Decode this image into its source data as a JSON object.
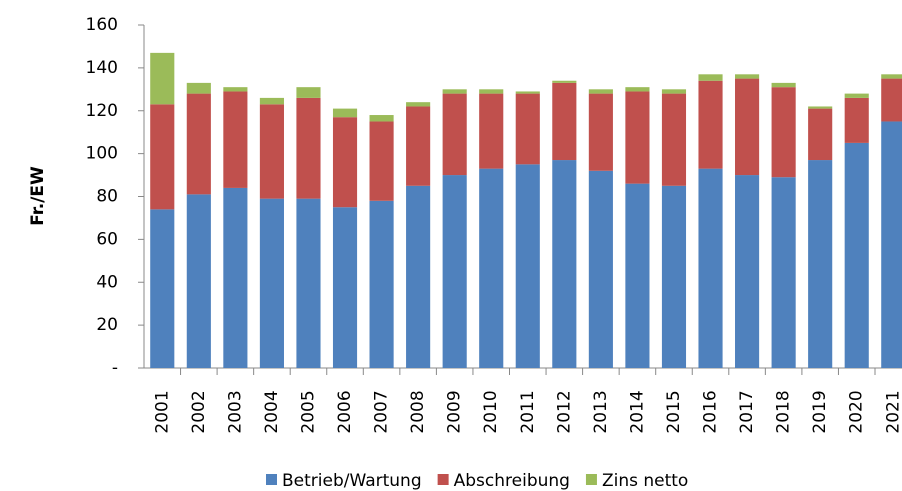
{
  "chart_data": {
    "type": "stacked_bar",
    "y_label": "Fr./EW",
    "categories": [
      "2001",
      "2002",
      "2003",
      "2004",
      "2005",
      "2006",
      "2007",
      "2008",
      "2009",
      "2010",
      "2011",
      "2012",
      "2013",
      "2014",
      "2015",
      "2016",
      "2017",
      "2018",
      "2019",
      "2020",
      "2021"
    ],
    "series": [
      {
        "name": "Betrieb/Wartung",
        "color": "#4f81bd",
        "values": [
          74,
          81,
          84,
          79,
          79,
          75,
          78,
          85,
          90,
          93,
          95,
          97,
          92,
          86,
          85,
          93,
          90,
          89,
          97,
          105,
          115
        ]
      },
      {
        "name": "Abschreibung",
        "color": "#c0504d",
        "values": [
          49,
          47,
          45,
          44,
          47,
          42,
          37,
          37,
          38,
          35,
          33,
          36,
          36,
          43,
          43,
          41,
          45,
          42,
          24,
          21,
          20
        ]
      },
      {
        "name": "Zins netto",
        "color": "#9bbb59",
        "values": [
          24,
          5,
          2,
          3,
          5,
          4,
          3,
          2,
          2,
          2,
          1,
          1,
          2,
          2,
          2,
          3,
          2,
          2,
          1,
          2,
          2
        ]
      }
    ],
    "ylim": [
      0,
      160
    ],
    "yticks": [
      {
        "value": 0,
        "label": "-"
      },
      20,
      40,
      60,
      80,
      100,
      120,
      140,
      160
    ],
    "legend": "bottom"
  }
}
